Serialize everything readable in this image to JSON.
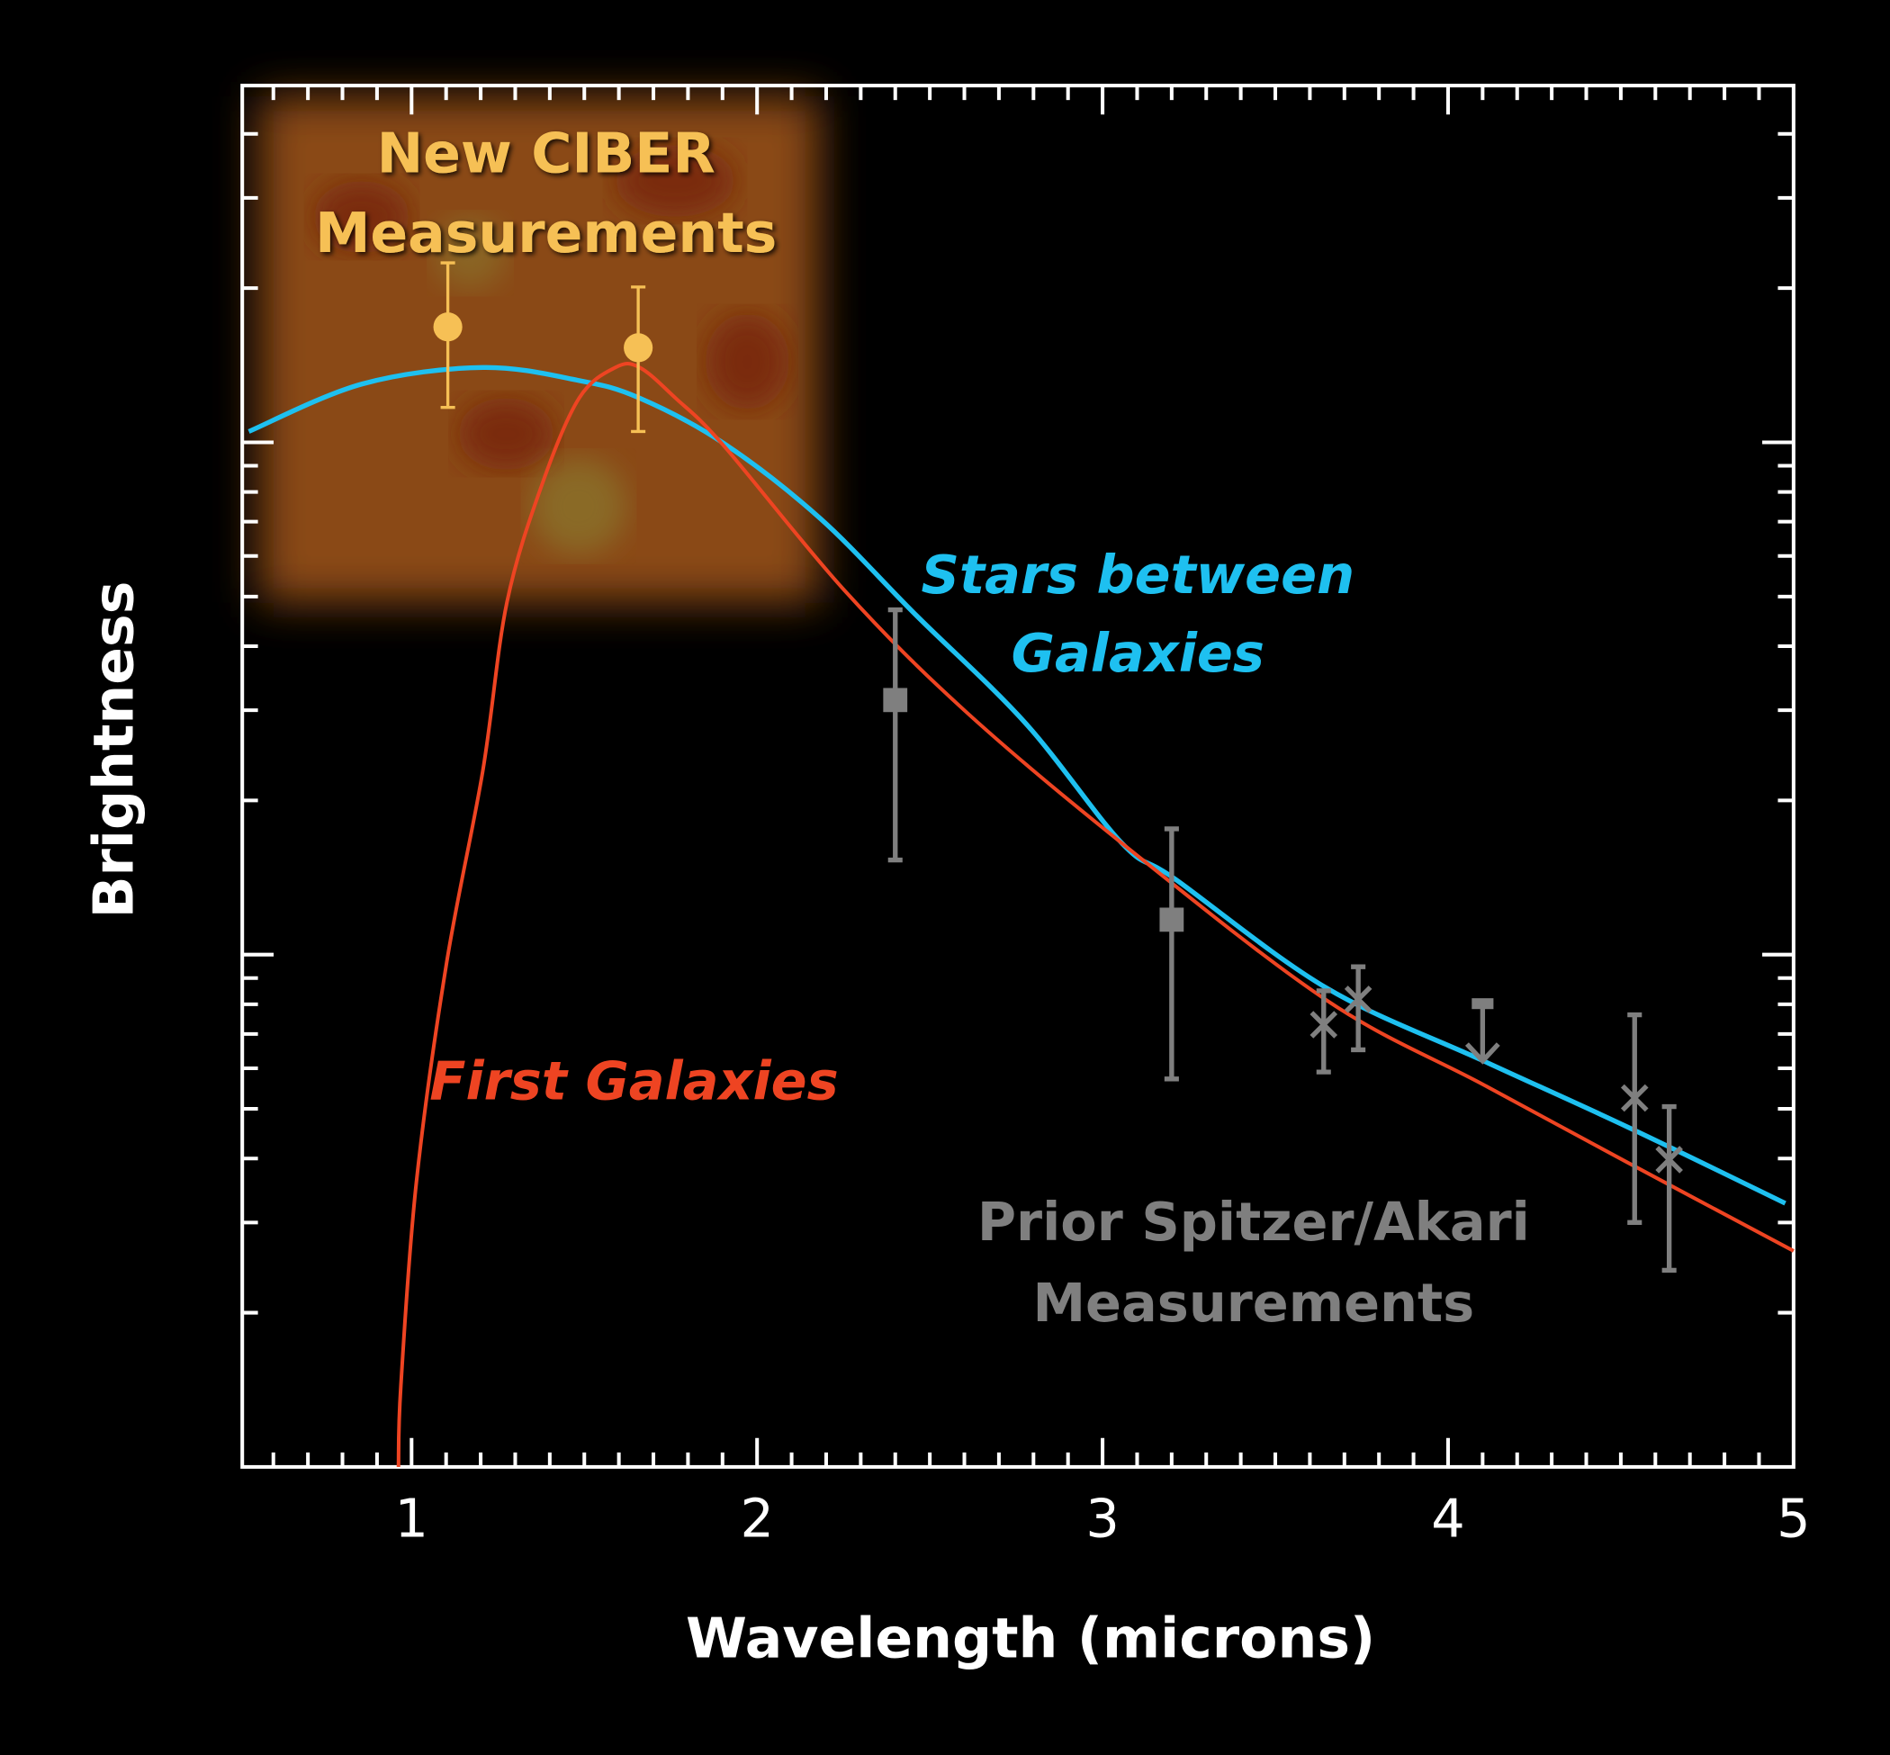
{
  "chart_data": {
    "type": "line",
    "title": "",
    "xlabel": "Wavelength (microns)",
    "ylabel": "Brightness",
    "xlim": [
      0.51,
      5.0
    ],
    "ylim": [
      1,
      497
    ],
    "yscale": "log",
    "y_tick_labels_shown": false,
    "x_ticks": [
      1,
      2,
      3,
      4,
      5
    ],
    "x_tick_labels": [
      "1",
      "2",
      "3",
      "4",
      "5"
    ],
    "grid": false,
    "background": "#000000",
    "series": [
      {
        "name": "Stars between Galaxies",
        "kind": "curve",
        "color": "#1ec0f0",
        "x": [
          0.529,
          0.857,
          1.206,
          1.485,
          1.66,
          1.904,
          2.183,
          2.46,
          2.777,
          3.056,
          3.213,
          3.649,
          4.103,
          4.522,
          4.976
        ],
        "y": [
          105,
          130,
          140,
          132,
          122,
          99.5,
          71,
          46,
          28.3,
          16.5,
          14,
          8.6,
          6.2,
          4.6,
          3.27
        ]
      },
      {
        "name": "First Galaxies",
        "kind": "curve",
        "color": "#ee4422",
        "x": [
          0.962,
          0.969,
          1.014,
          1.101,
          1.206,
          1.276,
          1.38,
          1.485,
          1.59,
          1.66,
          1.764,
          1.904,
          2.253,
          2.602,
          3.056,
          3.649,
          4.103,
          4.522,
          5.0
        ],
        "y": [
          1,
          1.44,
          3.6,
          9.6,
          22.8,
          48.7,
          83.6,
          122,
          140,
          140,
          122,
          98.4,
          51.4,
          29.9,
          16.5,
          8.14,
          5.57,
          3.92,
          2.64
        ]
      },
      {
        "name": "New CIBER Measurements",
        "kind": "points",
        "marker": "circle",
        "color": "#f6c055",
        "x": [
          1.105,
          1.656
        ],
        "y": [
          168,
          153
        ],
        "y_low": [
          117,
          105
        ],
        "y_high": [
          224,
          201
        ]
      },
      {
        "name": "Prior Spitzer/Akari Measurements",
        "kind": "points",
        "color": "#7f7f7f",
        "points": [
          {
            "x": 2.4,
            "y": 31.4,
            "y_low": 15.3,
            "y_high": 47.1,
            "marker": "square"
          },
          {
            "x": 3.2,
            "y": 11.7,
            "y_low": 5.72,
            "y_high": 17.6,
            "marker": "square"
          },
          {
            "x": 3.64,
            "y": 7.3,
            "y_low": 5.9,
            "y_high": 8.5,
            "marker": "x"
          },
          {
            "x": 3.74,
            "y": 8.18,
            "y_low": 6.52,
            "y_high": 9.47,
            "marker": "x"
          },
          {
            "x": 4.1,
            "y": 8.0,
            "marker": "upper-limit"
          },
          {
            "x": 4.54,
            "y": 5.25,
            "y_low": 3.0,
            "y_high": 7.63,
            "marker": "x"
          },
          {
            "x": 4.64,
            "y": 3.98,
            "y_low": 2.42,
            "y_high": 5.05,
            "marker": "x"
          }
        ]
      }
    ],
    "annotations": {
      "ciber": [
        "New CIBER",
        "Measurements"
      ],
      "stars": [
        "Stars between",
        "Galaxies"
      ],
      "first": "First Galaxies",
      "prior": [
        "Prior Spitzer/Akari",
        "Measurements"
      ]
    }
  }
}
